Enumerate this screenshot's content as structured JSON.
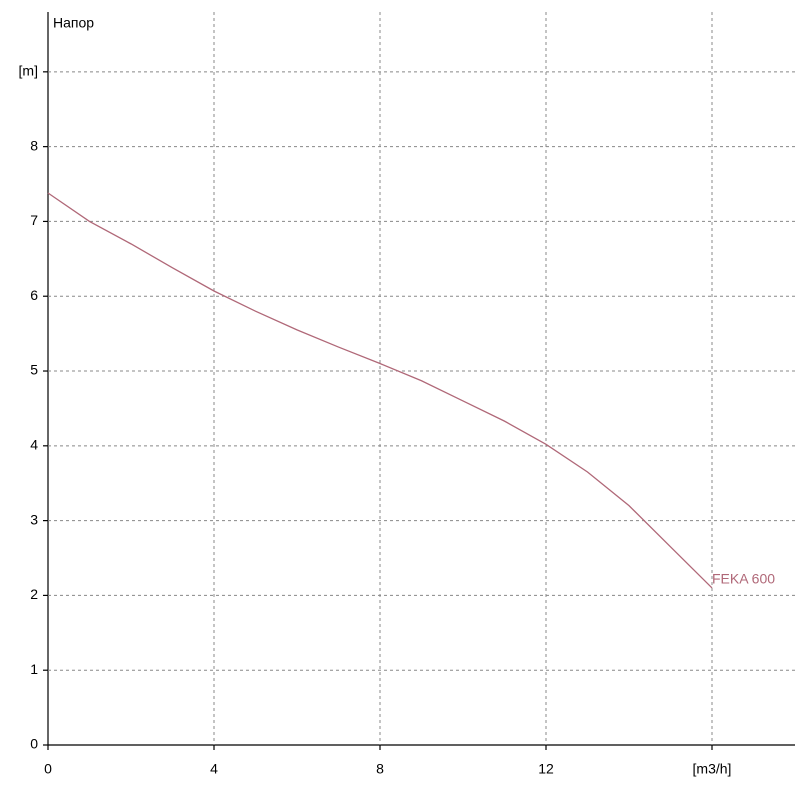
{
  "chart_data": {
    "type": "line",
    "y_label": "Напор",
    "x": [
      0,
      1,
      2,
      3,
      4,
      5,
      6,
      7,
      8,
      9,
      10,
      11,
      12,
      13,
      14,
      15,
      16
    ],
    "series": [
      {
        "name": "FEKA 600",
        "color": "#b06878",
        "values": [
          7.38,
          7.0,
          6.7,
          6.38,
          6.07,
          5.8,
          5.55,
          5.32,
          5.1,
          4.87,
          4.6,
          4.33,
          4.02,
          3.65,
          3.2,
          2.65,
          2.1
        ]
      }
    ],
    "xlim": [
      0,
      18
    ],
    "ylim": [
      0,
      9.8
    ],
    "xticks": [
      0,
      4,
      8,
      12,
      {
        "value": 16,
        "label": "[m3/h]"
      }
    ],
    "yticks": [
      0,
      1,
      2,
      3,
      4,
      5,
      6,
      7,
      8,
      {
        "value": 9,
        "label": "[m]"
      }
    ],
    "grid": true
  }
}
